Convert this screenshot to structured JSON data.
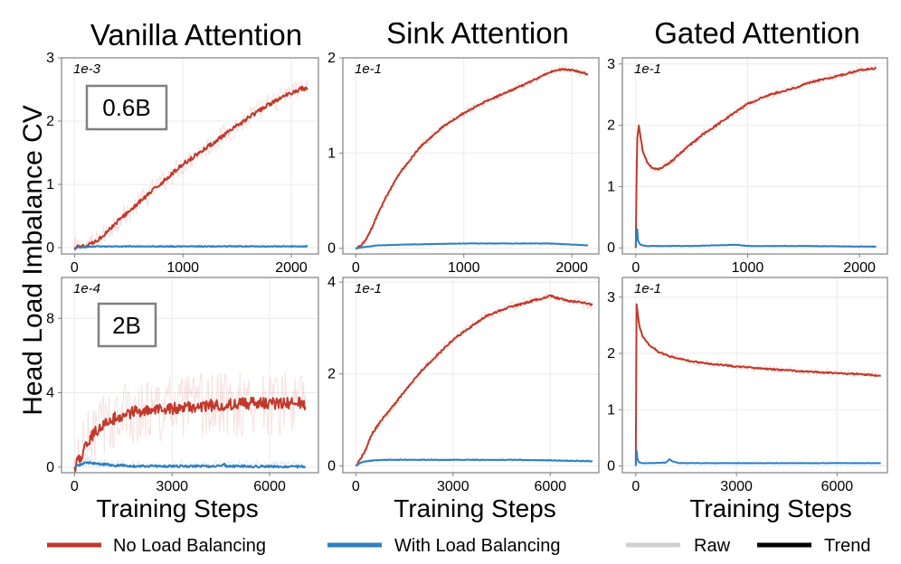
{
  "figure": {
    "ylabel": "Head Load Imbalance CV",
    "xlabel": "Training Steps",
    "column_titles": [
      "Vanilla Attention",
      "Sink Attention",
      "Gated Attention"
    ],
    "model_sizes": [
      "0.6B",
      "2B"
    ]
  },
  "legend": {
    "entries": [
      {
        "label": "No Load Balancing",
        "color": "#c0392b"
      },
      {
        "label": "With Load Balancing",
        "color": "#2e7fbf"
      },
      {
        "label": "Raw",
        "color": "#d0d0d0"
      },
      {
        "label": "Trend",
        "color": "#000000"
      }
    ]
  },
  "chart_data": [
    {
      "type": "line",
      "title": "Vanilla Attention",
      "model": "0.6B",
      "scale_label": "1e-3",
      "xlim": [
        -120,
        2250
      ],
      "ylim": [
        -0.1,
        3.0
      ],
      "xticks": [
        0,
        1000,
        2000
      ],
      "xtick_labels": [
        "0",
        "1000",
        "2000"
      ],
      "yticks": [
        0,
        1,
        2,
        3
      ],
      "ytick_labels": [
        "0",
        "1",
        "2",
        "3"
      ],
      "noise": [
        0.04,
        0.18
      ],
      "xmax": 2150,
      "series": [
        {
          "name": "No Load Balancing",
          "color": "#c0392b",
          "x": [
            0,
            100,
            200,
            300,
            400,
            600,
            800,
            1000,
            1200,
            1400,
            1600,
            1800,
            2000,
            2100,
            2150
          ],
          "y": [
            0,
            0.02,
            0.1,
            0.25,
            0.42,
            0.72,
            1.02,
            1.32,
            1.56,
            1.8,
            2.05,
            2.27,
            2.45,
            2.52,
            2.5
          ]
        },
        {
          "name": "With Load Balancing",
          "color": "#2e7fbf",
          "x": [
            0,
            200,
            500,
            1000,
            1500,
            2150
          ],
          "y": [
            0,
            0.02,
            0.02,
            0.02,
            0.02,
            0.02
          ]
        }
      ]
    },
    {
      "type": "line",
      "title": "Sink Attention",
      "model": "0.6B",
      "scale_label": "1e-1",
      "xlim": [
        -120,
        2250
      ],
      "ylim": [
        -0.06,
        2.0
      ],
      "xticks": [
        0,
        1000,
        2000
      ],
      "xtick_labels": [
        "0",
        "1000",
        "2000"
      ],
      "yticks": [
        0,
        1,
        2
      ],
      "ytick_labels": [
        "0",
        "1",
        "2"
      ],
      "noise": [
        0.012,
        0.05
      ],
      "xmax": 2150,
      "series": [
        {
          "name": "No Load Balancing",
          "color": "#c0392b",
          "x": [
            0,
            50,
            100,
            150,
            200,
            300,
            400,
            600,
            800,
            1000,
            1200,
            1400,
            1600,
            1800,
            1900,
            2000,
            2150
          ],
          "y": [
            0,
            0.03,
            0.1,
            0.22,
            0.35,
            0.58,
            0.78,
            1.07,
            1.27,
            1.42,
            1.54,
            1.64,
            1.74,
            1.85,
            1.88,
            1.87,
            1.83
          ]
        },
        {
          "name": "With Load Balancing",
          "color": "#2e7fbf",
          "x": [
            0,
            200,
            500,
            1000,
            1500,
            1800,
            2150
          ],
          "y": [
            0,
            0.03,
            0.04,
            0.05,
            0.05,
            0.05,
            0.03
          ]
        }
      ]
    },
    {
      "type": "line",
      "title": "Gated Attention",
      "model": "0.6B",
      "scale_label": "1e-1",
      "xlim": [
        -120,
        2250
      ],
      "ylim": [
        -0.1,
        3.1
      ],
      "xticks": [
        0,
        1000,
        2000
      ],
      "xtick_labels": [
        "0",
        "1000",
        "2000"
      ],
      "yticks": [
        0,
        1,
        2,
        3
      ],
      "ytick_labels": [
        "0",
        "1",
        "2",
        "3"
      ],
      "noise": [
        0.02,
        0.08
      ],
      "xmax": 2150,
      "series": [
        {
          "name": "No Load Balancing",
          "color": "#c0392b",
          "x": [
            0,
            10,
            25,
            40,
            60,
            100,
            150,
            200,
            300,
            400,
            600,
            800,
            1000,
            1200,
            1400,
            1600,
            1800,
            2000,
            2150
          ],
          "y": [
            0,
            1.7,
            2.0,
            1.85,
            1.6,
            1.4,
            1.3,
            1.28,
            1.38,
            1.55,
            1.85,
            2.1,
            2.35,
            2.5,
            2.6,
            2.72,
            2.8,
            2.9,
            2.93
          ]
        },
        {
          "name": "With Load Balancing",
          "color": "#2e7fbf",
          "x": [
            0,
            10,
            20,
            40,
            100,
            500,
            900,
            950,
            1000,
            1500,
            2150
          ],
          "y": [
            0,
            0.4,
            0.12,
            0.05,
            0.03,
            0.03,
            0.05,
            0.04,
            0.03,
            0.03,
            0.02
          ]
        }
      ]
    },
    {
      "type": "line",
      "title": "Vanilla Attention",
      "model": "2B",
      "scale_label": "1e-4",
      "xlim": [
        -400,
        7500
      ],
      "ylim": [
        -0.3,
        10.2
      ],
      "xticks": [
        0,
        3000,
        6000
      ],
      "xtick_labels": [
        "0",
        "3000",
        "6000"
      ],
      "yticks": [
        0,
        4,
        8
      ],
      "ytick_labels": [
        "0",
        "4",
        "8"
      ],
      "noise": [
        0.35,
        1.8
      ],
      "xmax": 7100,
      "series": [
        {
          "name": "No Load Balancing",
          "color": "#c0392b",
          "x": [
            0,
            200,
            500,
            800,
            1200,
            1600,
            2000,
            2500,
            3000,
            3500,
            4000,
            4500,
            5000,
            5500,
            6000,
            6500,
            7000,
            7100
          ],
          "y": [
            0,
            0.6,
            1.6,
            2.2,
            2.6,
            2.9,
            3.0,
            3.1,
            3.15,
            3.2,
            3.3,
            3.35,
            3.4,
            3.45,
            3.45,
            3.4,
            3.5,
            3.1
          ]
        },
        {
          "name": "With Load Balancing",
          "color": "#2e7fbf",
          "x": [
            0,
            200,
            400,
            700,
            1200,
            2000,
            3000,
            4500,
            4600,
            4700,
            6000,
            7100
          ],
          "y": [
            0,
            0.15,
            0.25,
            0.18,
            0.1,
            0.05,
            0.05,
            0.05,
            0.15,
            0.05,
            0.03,
            0.02
          ]
        }
      ]
    },
    {
      "type": "line",
      "title": "Sink Attention",
      "model": "2B",
      "scale_label": "1e-1",
      "xlim": [
        -400,
        7500
      ],
      "ylim": [
        -0.15,
        4.1
      ],
      "xticks": [
        0,
        3000,
        6000
      ],
      "xtick_labels": [
        "0",
        "3000",
        "6000"
      ],
      "yticks": [
        0,
        2,
        4
      ],
      "ytick_labels": [
        "0",
        "2",
        "4"
      ],
      "noise": [
        0.04,
        0.12
      ],
      "xmax": 7300,
      "series": [
        {
          "name": "No Load Balancing",
          "color": "#c0392b",
          "x": [
            0,
            100,
            300,
            500,
            800,
            1200,
            1600,
            2000,
            2500,
            3000,
            3500,
            4000,
            4500,
            5000,
            5500,
            5800,
            6000,
            6500,
            7000,
            7300
          ],
          "y": [
            0,
            0.1,
            0.35,
            0.7,
            1.0,
            1.35,
            1.7,
            2.05,
            2.4,
            2.75,
            3.0,
            3.25,
            3.4,
            3.5,
            3.6,
            3.65,
            3.7,
            3.6,
            3.55,
            3.5
          ]
        },
        {
          "name": "With Load Balancing",
          "color": "#2e7fbf",
          "x": [
            0,
            100,
            300,
            600,
            1000,
            2000,
            3000,
            4000,
            5000,
            6000,
            7300
          ],
          "y": [
            0,
            0.05,
            0.1,
            0.12,
            0.13,
            0.13,
            0.13,
            0.13,
            0.13,
            0.12,
            0.1
          ]
        }
      ]
    },
    {
      "type": "line",
      "title": "Gated Attention",
      "model": "2B",
      "scale_label": "1e-1",
      "xlim": [
        -400,
        7500
      ],
      "ylim": [
        -0.12,
        3.35
      ],
      "xticks": [
        0,
        3000,
        6000
      ],
      "xtick_labels": [
        "0",
        "3000",
        "6000"
      ],
      "yticks": [
        0,
        1,
        2,
        3
      ],
      "ytick_labels": [
        "0",
        "1",
        "2",
        "3"
      ],
      "noise": [
        0.02,
        0.07
      ],
      "xmax": 7300,
      "series": [
        {
          "name": "No Load Balancing",
          "color": "#c0392b",
          "x": [
            0,
            20,
            50,
            100,
            200,
            400,
            700,
            1000,
            1500,
            2000,
            3000,
            4000,
            5000,
            6000,
            7000,
            7300
          ],
          "y": [
            0,
            2.9,
            2.75,
            2.5,
            2.3,
            2.15,
            2.02,
            1.95,
            1.88,
            1.83,
            1.77,
            1.72,
            1.68,
            1.65,
            1.62,
            1.6
          ]
        },
        {
          "name": "With Load Balancing",
          "color": "#2e7fbf",
          "x": [
            0,
            20,
            40,
            80,
            200,
            500,
            900,
            1000,
            1100,
            1300,
            2000,
            4000,
            7300
          ],
          "y": [
            0,
            0.3,
            0.15,
            0.07,
            0.05,
            0.05,
            0.06,
            0.12,
            0.08,
            0.05,
            0.05,
            0.05,
            0.05
          ]
        }
      ]
    }
  ]
}
